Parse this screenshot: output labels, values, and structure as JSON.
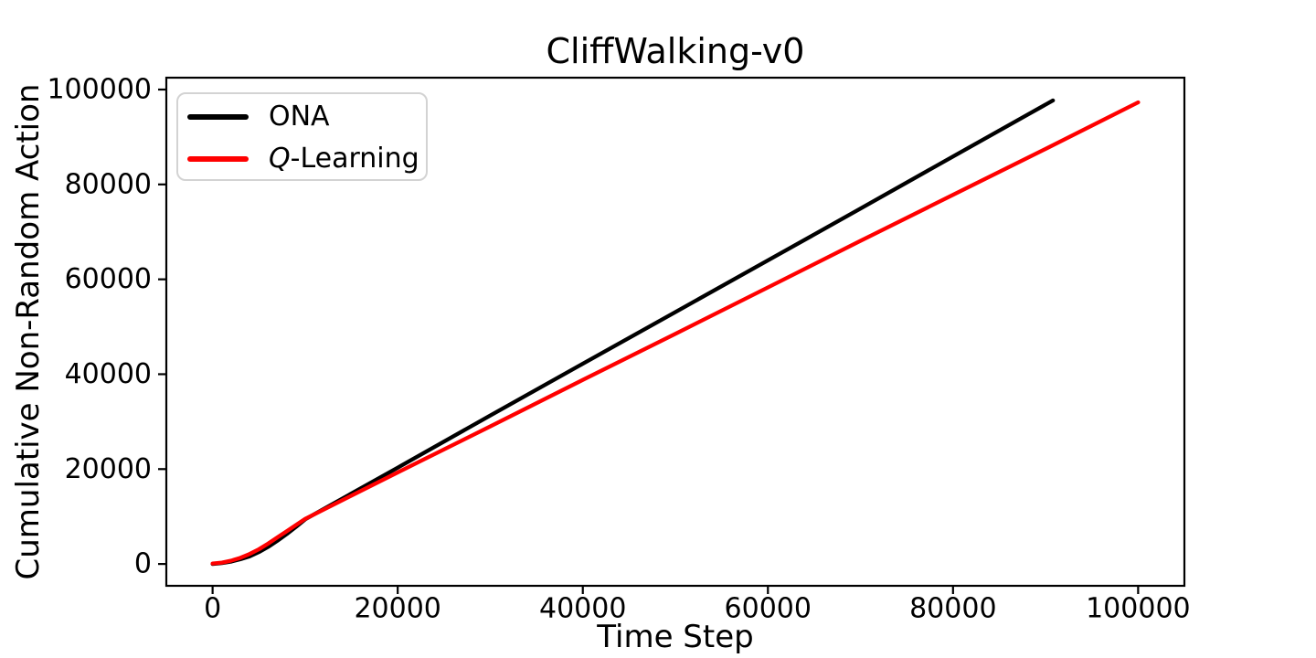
{
  "figure": {
    "background": "#ffffff",
    "axes_color": "#000000"
  },
  "chart_data": {
    "type": "line",
    "title": "CliffWalking-v0",
    "xlabel": "Time Step",
    "ylabel": "Cumulative Non-Random Action",
    "xlim": [
      -5000,
      105000
    ],
    "ylim": [
      -4600,
      102500
    ],
    "xticks": [
      0,
      20000,
      40000,
      60000,
      80000,
      100000
    ],
    "yticks": [
      0,
      20000,
      40000,
      60000,
      80000,
      100000
    ],
    "grid": false,
    "legend": {
      "position": "upper left",
      "border_color": "#d3d3d3",
      "background": "#ffffff"
    },
    "series": [
      {
        "name": "ONA",
        "color": "#000000",
        "italic_first_char": false,
        "points": [
          [
            0,
            0
          ],
          [
            1000,
            200
          ],
          [
            2000,
            500
          ],
          [
            3000,
            1000
          ],
          [
            4000,
            1600
          ],
          [
            5000,
            2500
          ],
          [
            6000,
            3600
          ],
          [
            7000,
            4900
          ],
          [
            8000,
            6300
          ],
          [
            9000,
            7800
          ],
          [
            10000,
            9400
          ],
          [
            20000,
            20300
          ],
          [
            30000,
            31300
          ],
          [
            40000,
            42200
          ],
          [
            50000,
            53100
          ],
          [
            60000,
            64000
          ],
          [
            70000,
            74900
          ],
          [
            80000,
            85900
          ],
          [
            90800,
            97700
          ]
        ]
      },
      {
        "name": "Q-Learning",
        "color": "#ff0000",
        "italic_first_char": true,
        "points": [
          [
            0,
            100
          ],
          [
            1000,
            300
          ],
          [
            2000,
            700
          ],
          [
            3000,
            1300
          ],
          [
            4000,
            2100
          ],
          [
            5000,
            3100
          ],
          [
            6000,
            4300
          ],
          [
            7000,
            5600
          ],
          [
            8000,
            6900
          ],
          [
            9000,
            8200
          ],
          [
            10000,
            9500
          ],
          [
            20000,
            19300
          ],
          [
            30000,
            29000
          ],
          [
            40000,
            38800
          ],
          [
            50000,
            48500
          ],
          [
            60000,
            58300
          ],
          [
            70000,
            68100
          ],
          [
            80000,
            77800
          ],
          [
            90000,
            87500
          ],
          [
            100000,
            97300
          ]
        ]
      }
    ]
  }
}
